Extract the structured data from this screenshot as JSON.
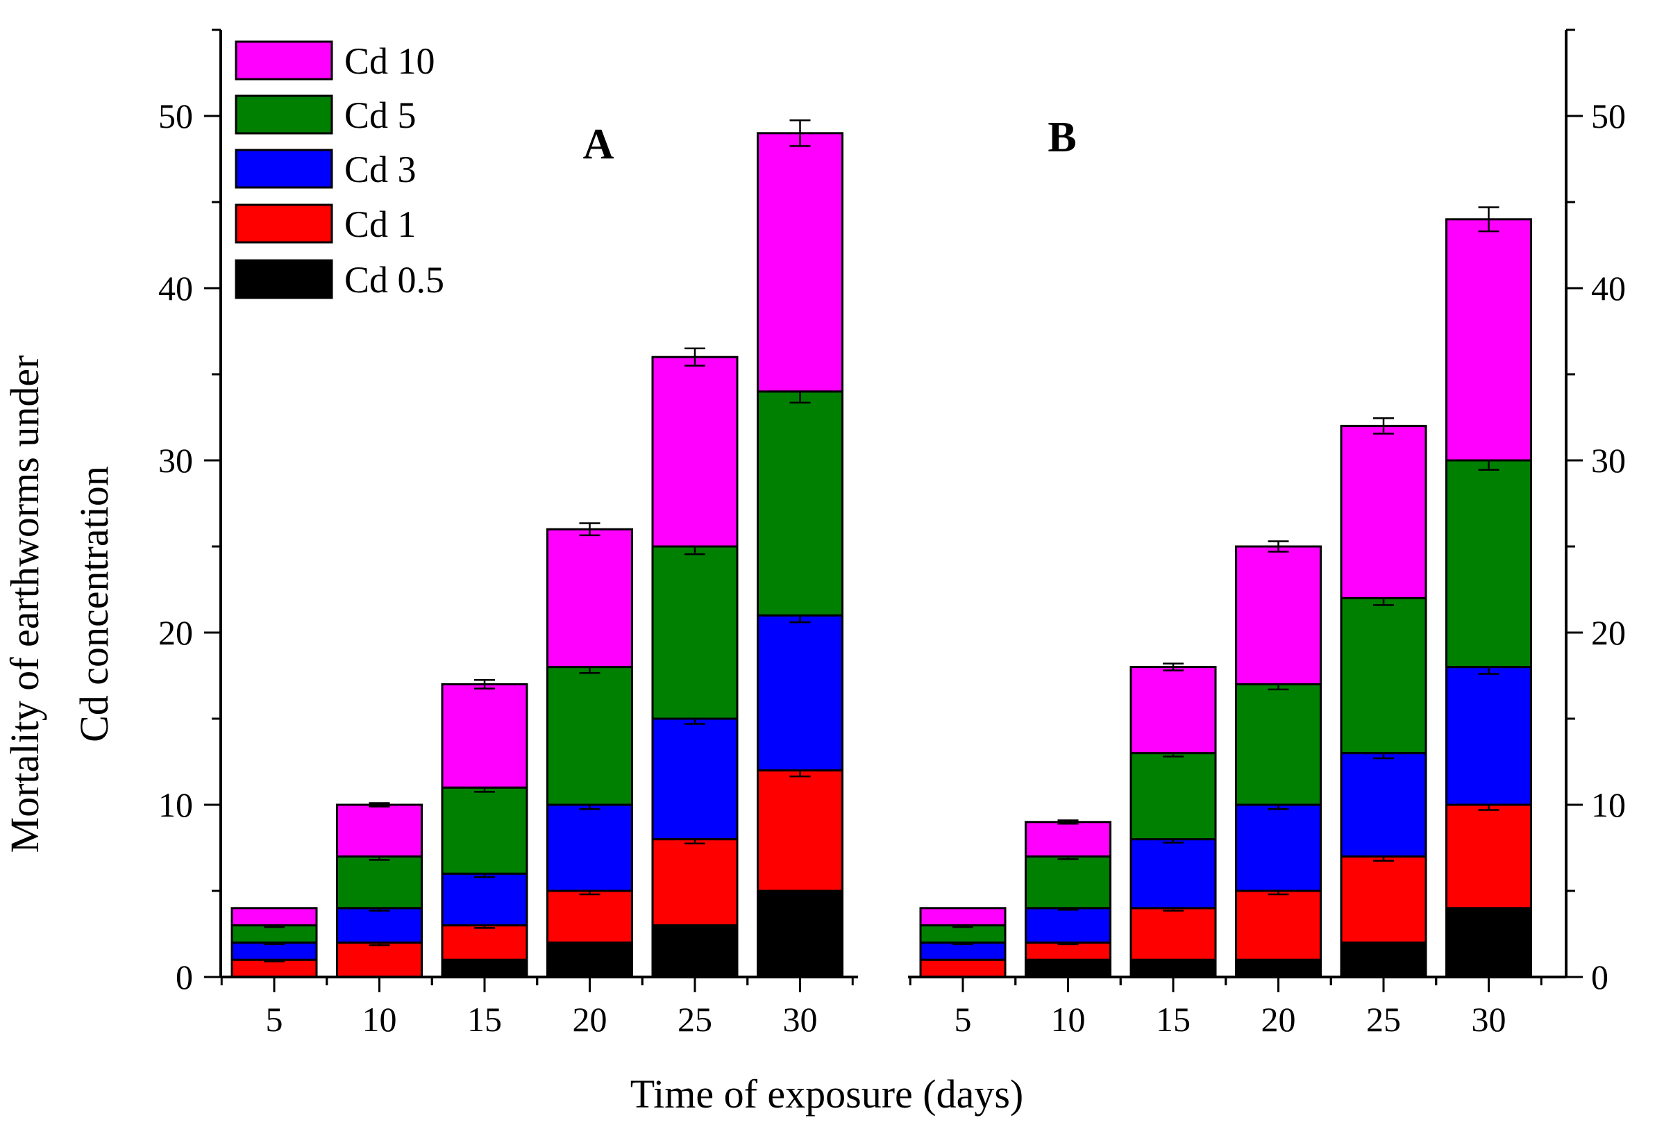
{
  "chart_data": {
    "type": "bar",
    "stacked": true,
    "ylabel_line1": "Mortality of earthworms under",
    "ylabel_line2": "Cd concentration",
    "xlabel": "Time of exposure (days)",
    "ylim": [
      0,
      55
    ],
    "yticks": [
      "0",
      "10",
      "20",
      "30",
      "40",
      "50"
    ],
    "categories": [
      "5",
      "10",
      "15",
      "20",
      "25",
      "30"
    ],
    "legend_position": "top-left",
    "series_meta": [
      {
        "name": "Cd 0.5",
        "color": "#000000"
      },
      {
        "name": "Cd 1",
        "color": "#ff0000"
      },
      {
        "name": "Cd 3",
        "color": "#0000ff"
      },
      {
        "name": "Cd 5",
        "color": "#008000"
      },
      {
        "name": "Cd 10",
        "color": "#ff00ff"
      }
    ],
    "panels": [
      {
        "label": "A",
        "series": [
          {
            "name": "Cd 0.5",
            "values": [
              0,
              0,
              1,
              2,
              3,
              5
            ]
          },
          {
            "name": "Cd 1",
            "values": [
              1,
              2,
              2,
              3,
              5,
              7
            ]
          },
          {
            "name": "Cd 3",
            "values": [
              1,
              2,
              3,
              5,
              7,
              9
            ]
          },
          {
            "name": "Cd 5",
            "values": [
              1,
              3,
              5,
              8,
              10,
              13
            ]
          },
          {
            "name": "Cd 10",
            "values": [
              1,
              3,
              6,
              8,
              11,
              15
            ]
          }
        ],
        "cumulative_errors": [
          [
            0,
            0,
            0.1,
            0.15,
            0.15,
            0.25
          ],
          [
            0.1,
            0.15,
            0.15,
            0.2,
            0.25,
            0.35
          ],
          [
            0.1,
            0.15,
            0.2,
            0.25,
            0.3,
            0.4
          ],
          [
            0.1,
            0.2,
            0.25,
            0.35,
            0.45,
            0.65
          ],
          [
            0,
            0.1,
            0.25,
            0.35,
            0.5,
            0.75
          ]
        ]
      },
      {
        "label": "B",
        "series": [
          {
            "name": "Cd 0.5",
            "values": [
              0,
              1,
              1,
              1,
              2,
              4
            ]
          },
          {
            "name": "Cd 1",
            "values": [
              1,
              1,
              3,
              4,
              5,
              6
            ]
          },
          {
            "name": "Cd 3",
            "values": [
              1,
              2,
              4,
              5,
              6,
              8
            ]
          },
          {
            "name": "Cd 5",
            "values": [
              1,
              3,
              5,
              7,
              9,
              12
            ]
          },
          {
            "name": "Cd 10",
            "values": [
              1,
              2,
              5,
              8,
              10,
              14
            ]
          }
        ],
        "cumulative_errors": [
          [
            0,
            0,
            0,
            0,
            0.1,
            0.15
          ],
          [
            0,
            0.1,
            0.15,
            0.2,
            0.25,
            0.3
          ],
          [
            0.1,
            0.1,
            0.2,
            0.25,
            0.3,
            0.4
          ],
          [
            0.1,
            0.15,
            0.2,
            0.3,
            0.4,
            0.55
          ],
          [
            0,
            0.1,
            0.2,
            0.3,
            0.45,
            0.7
          ]
        ]
      }
    ]
  }
}
